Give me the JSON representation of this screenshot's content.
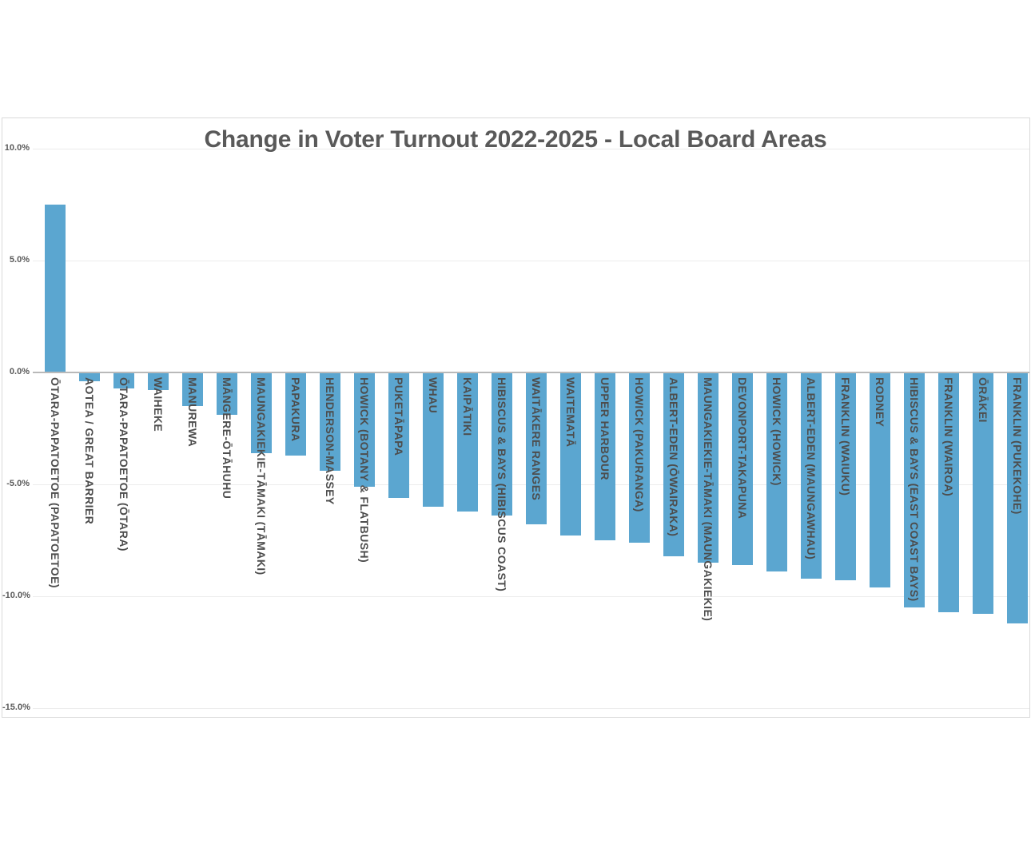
{
  "colors": {
    "bar": "#5ba6d0",
    "title_text": "#595959",
    "axis_tick_text": "#595959",
    "category_text": "#4d4d4d",
    "gridline": "#ececec",
    "zero_axis_line": "#b9b9b9",
    "plot_border": "#dadada",
    "background": "#ffffff"
  },
  "chart_data": {
    "type": "bar",
    "title": "Change in Voter Turnout 2022-2025 - Local Board Areas",
    "xlabel": "",
    "ylabel": "",
    "ylim": [
      -15,
      10
    ],
    "grid": true,
    "legend": "none",
    "bar_color": "#5ba6d0",
    "y_ticks": [
      10,
      5,
      0,
      -5,
      -10,
      -15
    ],
    "y_tick_labels": [
      "10.0%",
      "5.0%",
      "0.0%",
      "-5.0%",
      "-10.0%",
      "-15.0%"
    ],
    "categories": [
      "ŌTARA-PAPATOETOE (PAPATOETOE)",
      "AOTEA / GREAT BARRIER",
      "ŌTARA-PAPATOETOE (ŌTARA)",
      "WAIHEKE",
      "MANUREWA",
      "MĀNGERE-ŌTĀHUHU",
      "MAUNGAKIEKIE-TĀMAKI (TĀMAKI)",
      "PAPAKURA",
      "HENDERSON-MASSEY",
      "HOWICK (BOTANY & FLATBUSH)",
      "PUKETĀPAPA",
      "WHAU",
      "KAIPĀTIKI",
      "HIBISCUS & BAYS (HIBISCUS COAST)",
      "WAITĀKERE RANGES",
      "WAITEMATĀ",
      "UPPER HARBOUR",
      "HOWICK (PAKURANGA)",
      "ALBERT-EDEN (ŌWAIRAKA)",
      "MAUNGAKIEKIE-TĀMAKI (MAUNGAKIEKIE)",
      "DEVONPORT-TAKAPUNA",
      "HOWICK (HOWICK)",
      "ALBERT-EDEN (MAUNGAWHAU)",
      "FRANKLIN (WAIUKU)",
      "RODNEY",
      "HIBISCUS & BAYS (EAST COAST BAYS)",
      "FRANKLIN (WAIROA)",
      "ŌRĀKEI",
      "FRANKLIN (PUKEKOHE)"
    ],
    "values": [
      7.5,
      -0.4,
      -0.7,
      -0.8,
      -1.5,
      -1.9,
      -3.6,
      -3.7,
      -4.4,
      -5.1,
      -5.6,
      -6.0,
      -6.2,
      -6.4,
      -6.8,
      -7.3,
      -7.5,
      -7.6,
      -8.2,
      -8.5,
      -8.6,
      -8.9,
      -9.2,
      -9.3,
      -9.6,
      -10.5,
      -10.7,
      -10.8,
      -11.2
    ]
  }
}
